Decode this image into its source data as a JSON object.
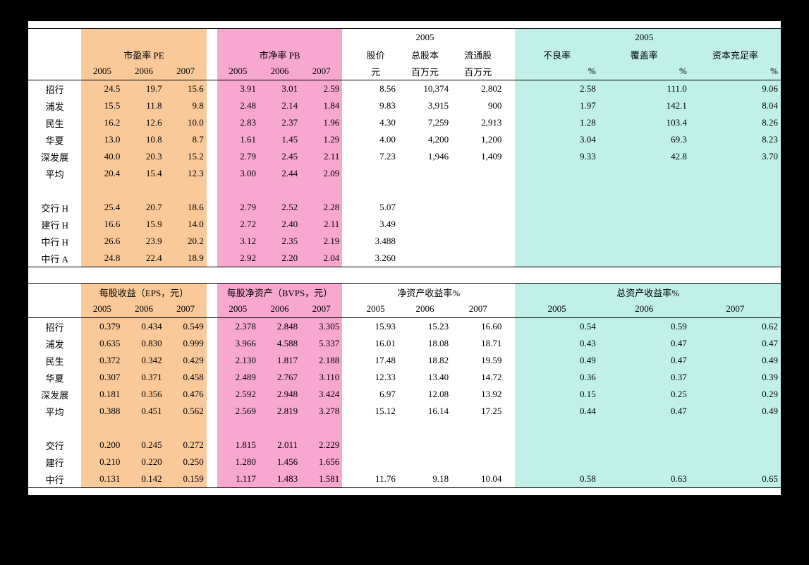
{
  "colors": {
    "orange": "#f9c999",
    "pink": "#f8a7d0",
    "cyan": "#c0f0e8",
    "text": "#000000",
    "bg": "#ffffff",
    "page_bg": "#000000"
  },
  "fontsize": 13,
  "top_table": {
    "pe": {
      "label": "市盈率 PE",
      "years": [
        "2005",
        "2006",
        "2007"
      ]
    },
    "pb": {
      "label": "市净率 PB",
      "years": [
        "2005",
        "2006",
        "2007"
      ]
    },
    "mid": {
      "year": "2005",
      "cols": [
        "股价",
        "总股本",
        "流通股"
      ],
      "units": [
        "元",
        "百万元",
        "百万元"
      ]
    },
    "right": {
      "year": "2005",
      "cols": [
        "不良率",
        "覆盖率",
        "资本充足率"
      ],
      "units": [
        "%",
        "%",
        "%"
      ]
    },
    "rows": [
      {
        "name": "招行",
        "pe": [
          "24.5",
          "19.7",
          "15.6"
        ],
        "pb": [
          "3.91",
          "3.01",
          "2.59"
        ],
        "mid": [
          "8.56",
          "10,374",
          "2,802"
        ],
        "r": [
          "2.58",
          "111.0",
          "9.06"
        ]
      },
      {
        "name": "浦发",
        "pe": [
          "15.5",
          "11.8",
          "9.8"
        ],
        "pb": [
          "2.48",
          "2.14",
          "1.84"
        ],
        "mid": [
          "9.83",
          "3,915",
          "900"
        ],
        "r": [
          "1.97",
          "142.1",
          "8.04"
        ]
      },
      {
        "name": "民生",
        "pe": [
          "16.2",
          "12.6",
          "10.0"
        ],
        "pb": [
          "2.83",
          "2.37",
          "1.96"
        ],
        "mid": [
          "4.30",
          "7,259",
          "2,913"
        ],
        "r": [
          "1.28",
          "103.4",
          "8.26"
        ]
      },
      {
        "name": "华夏",
        "pe": [
          "13.0",
          "10.8",
          "8.7"
        ],
        "pb": [
          "1.61",
          "1.45",
          "1.29"
        ],
        "mid": [
          "4.00",
          "4,200",
          "1,200"
        ],
        "r": [
          "3.04",
          "69.3",
          "8.23"
        ]
      },
      {
        "name": "深发展",
        "pe": [
          "40.0",
          "20.3",
          "15.2"
        ],
        "pb": [
          "2.79",
          "2.45",
          "2.11"
        ],
        "mid": [
          "7.23",
          "1,946",
          "1,409"
        ],
        "r": [
          "9.33",
          "42.8",
          "3.70"
        ]
      },
      {
        "name": "平均",
        "pe": [
          "20.4",
          "15.4",
          "12.3"
        ],
        "pb": [
          "3.00",
          "2.44",
          "2.09"
        ],
        "mid": [
          "",
          "",
          ""
        ],
        "r": [
          "",
          "",
          ""
        ]
      },
      {
        "name": "",
        "pe": [
          "",
          "",
          ""
        ],
        "pb": [
          "",
          "",
          ""
        ],
        "mid": [
          "",
          "",
          ""
        ],
        "r": [
          "",
          "",
          ""
        ]
      },
      {
        "name": "交行 H",
        "pe": [
          "25.4",
          "20.7",
          "18.6"
        ],
        "pb": [
          "2.79",
          "2.52",
          "2.28"
        ],
        "mid": [
          "5.07",
          "",
          ""
        ],
        "r": [
          "",
          "",
          ""
        ]
      },
      {
        "name": "建行 H",
        "pe": [
          "16.6",
          "15.9",
          "14.0"
        ],
        "pb": [
          "2.72",
          "2.40",
          "2.11"
        ],
        "mid": [
          "3.49",
          "",
          ""
        ],
        "r": [
          "",
          "",
          ""
        ]
      },
      {
        "name": "中行 H",
        "pe": [
          "26.6",
          "23.9",
          "20.2"
        ],
        "pb": [
          "3.12",
          "2.35",
          "2.19"
        ],
        "mid": [
          "3.488",
          "",
          ""
        ],
        "r": [
          "",
          "",
          ""
        ]
      },
      {
        "name": "中行 A",
        "pe": [
          "24.8",
          "22.4",
          "18.9"
        ],
        "pb": [
          "2.92",
          "2.20",
          "2.04"
        ],
        "mid": [
          "3.260",
          "",
          ""
        ],
        "r": [
          "",
          "",
          ""
        ]
      }
    ]
  },
  "bottom_table": {
    "eps": {
      "label": "每股收益（EPS，元）",
      "years": [
        "2005",
        "2006",
        "2007"
      ]
    },
    "bvps": {
      "label": "每股净资产（BVPS，元）",
      "years": [
        "2005",
        "2006",
        "2007"
      ]
    },
    "roe": {
      "label": "净资产收益率%",
      "years": [
        "2005",
        "2006",
        "2007"
      ]
    },
    "roa": {
      "label": "总资产收益率%",
      "years": [
        "2005",
        "2006",
        "2007"
      ]
    },
    "rows": [
      {
        "name": "招行",
        "eps": [
          "0.379",
          "0.434",
          "0.549"
        ],
        "bvps": [
          "2.378",
          "2.848",
          "3.305"
        ],
        "roe": [
          "15.93",
          "15.23",
          "16.60"
        ],
        "roa": [
          "0.54",
          "0.59",
          "0.62"
        ]
      },
      {
        "name": "浦发",
        "eps": [
          "0.635",
          "0.830",
          "0.999"
        ],
        "bvps": [
          "3.966",
          "4.588",
          "5.337"
        ],
        "roe": [
          "16.01",
          "18.08",
          "18.71"
        ],
        "roa": [
          "0.43",
          "0.47",
          "0.47"
        ]
      },
      {
        "name": "民生",
        "eps": [
          "0.372",
          "0.342",
          "0.429"
        ],
        "bvps": [
          "2.130",
          "1.817",
          "2.188"
        ],
        "roe": [
          "17.48",
          "18.82",
          "19.59"
        ],
        "roa": [
          "0.49",
          "0.47",
          "0.49"
        ]
      },
      {
        "name": "华夏",
        "eps": [
          "0.307",
          "0.371",
          "0.458"
        ],
        "bvps": [
          "2.489",
          "2.767",
          "3.110"
        ],
        "roe": [
          "12.33",
          "13.40",
          "14.72"
        ],
        "roa": [
          "0.36",
          "0.37",
          "0.39"
        ]
      },
      {
        "name": "深发展",
        "eps": [
          "0.181",
          "0.356",
          "0.476"
        ],
        "bvps": [
          "2.592",
          "2.948",
          "3.424"
        ],
        "roe": [
          "6.97",
          "12.08",
          "13.92"
        ],
        "roa": [
          "0.15",
          "0.25",
          "0.29"
        ]
      },
      {
        "name": "平均",
        "eps": [
          "0.388",
          "0.451",
          "0.562"
        ],
        "bvps": [
          "2.569",
          "2.819",
          "3.278"
        ],
        "roe": [
          "15.12",
          "16.14",
          "17.25"
        ],
        "roa": [
          "0.44",
          "0.47",
          "0.49"
        ]
      },
      {
        "name": "",
        "eps": [
          "",
          "",
          ""
        ],
        "bvps": [
          "",
          "",
          ""
        ],
        "roe": [
          "",
          "",
          ""
        ],
        "roa": [
          "",
          "",
          ""
        ]
      },
      {
        "name": "交行",
        "eps": [
          "0.200",
          "0.245",
          "0.272"
        ],
        "bvps": [
          "1.815",
          "2.011",
          "2.229"
        ],
        "roe": [
          "",
          "",
          ""
        ],
        "roa": [
          "",
          "",
          ""
        ]
      },
      {
        "name": "建行",
        "eps": [
          "0.210",
          "0.220",
          "0.250"
        ],
        "bvps": [
          "1.280",
          "1.456",
          "1.656"
        ],
        "roe": [
          "",
          "",
          ""
        ],
        "roa": [
          "",
          "",
          ""
        ]
      },
      {
        "name": "中行",
        "eps": [
          "0.131",
          "0.142",
          "0.159"
        ],
        "bvps": [
          "1.117",
          "1.483",
          "1.581"
        ],
        "roe": [
          "11.76",
          "9.18",
          "10.04"
        ],
        "roa": [
          "0.58",
          "0.63",
          "0.65"
        ]
      }
    ]
  }
}
